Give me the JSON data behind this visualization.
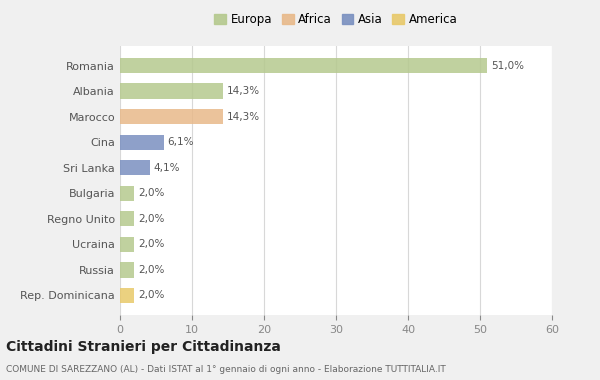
{
  "countries": [
    "Romania",
    "Albania",
    "Marocco",
    "Cina",
    "Sri Lanka",
    "Bulgaria",
    "Regno Unito",
    "Ucraina",
    "Russia",
    "Rep. Dominicana"
  ],
  "values": [
    51.0,
    14.3,
    14.3,
    6.1,
    4.1,
    2.0,
    2.0,
    2.0,
    2.0,
    2.0
  ],
  "labels": [
    "51,0%",
    "14,3%",
    "14,3%",
    "6,1%",
    "4,1%",
    "2,0%",
    "2,0%",
    "2,0%",
    "2,0%",
    "2,0%"
  ],
  "colors": [
    "#b5c98e",
    "#b5c98e",
    "#e8b98a",
    "#7a90c0",
    "#7a90c0",
    "#b5c98e",
    "#b5c98e",
    "#b5c98e",
    "#b5c98e",
    "#e8c96a"
  ],
  "legend_labels": [
    "Europa",
    "Africa",
    "Asia",
    "America"
  ],
  "legend_colors": [
    "#b5c98e",
    "#e8b98a",
    "#7a90c0",
    "#e8c96a"
  ],
  "title": "Cittadini Stranieri per Cittadinanza",
  "subtitle": "COMUNE DI SAREZZANO (AL) - Dati ISTAT al 1° gennaio di ogni anno - Elaborazione TUTTITALIA.IT",
  "xlim": [
    0,
    60
  ],
  "xticks": [
    0,
    10,
    20,
    30,
    40,
    50,
    60
  ],
  "bg_color": "#f0f0f0",
  "bar_bg_color": "#ffffff",
  "grid_color": "#d8d8d8"
}
